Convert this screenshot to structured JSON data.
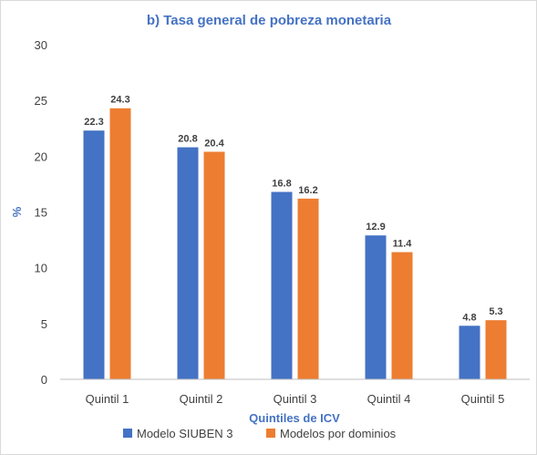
{
  "chart_data": {
    "type": "bar",
    "title": "b) Tasa general de pobreza monetaria",
    "xlabel": "Quintiles de ICV",
    "ylabel": "%",
    "ylim": [
      0,
      30
    ],
    "yticks": [
      0,
      5,
      10,
      15,
      20,
      25,
      30
    ],
    "categories": [
      "Quintil 1",
      "Quintil 2",
      "Quintil 3",
      "Quintil 4",
      "Quintil 5"
    ],
    "series": [
      {
        "name": "Modelo SIUBEN 3",
        "color": "#4472c4",
        "values": [
          22.3,
          20.8,
          16.8,
          12.9,
          4.8
        ]
      },
      {
        "name": "Modelos por dominios",
        "color": "#ed7d31",
        "values": [
          24.3,
          20.4,
          16.2,
          11.4,
          5.3
        ]
      }
    ],
    "grid": false,
    "legend_position": "bottom"
  }
}
